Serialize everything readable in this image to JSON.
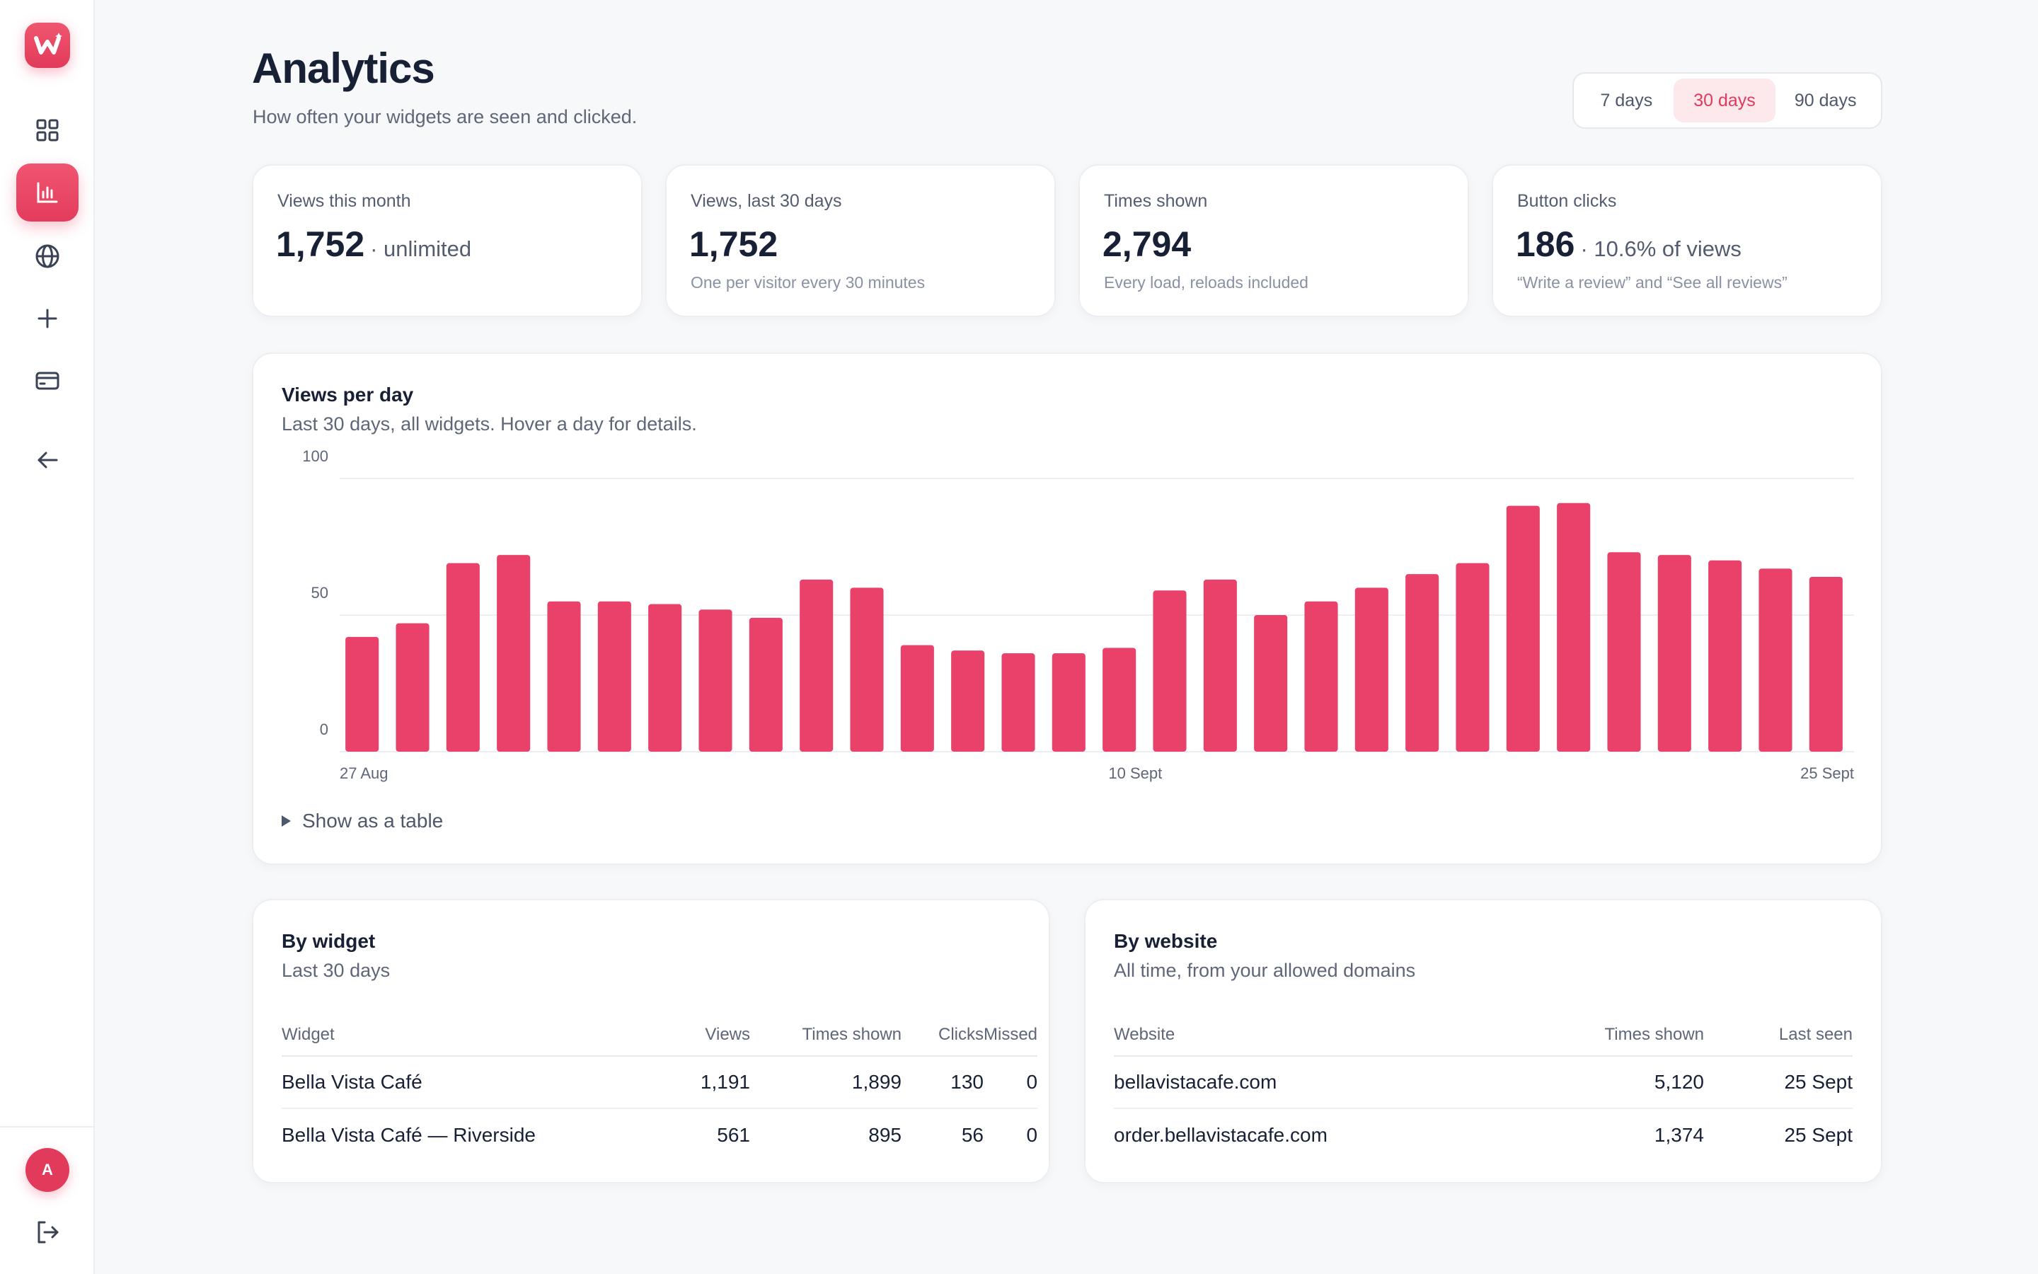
{
  "colors": {
    "accent": "#e9416a",
    "accent_soft": "#fde8ec",
    "text": "#182036",
    "muted": "#5e6678"
  },
  "sidebar": {
    "logo_icon": "widget-logo-icon",
    "items": [
      {
        "name": "dashboard",
        "icon": "grid-icon",
        "active": false
      },
      {
        "name": "analytics",
        "icon": "bar-chart-icon",
        "active": true
      },
      {
        "name": "websites",
        "icon": "globe-icon",
        "active": false
      },
      {
        "name": "create",
        "icon": "plus-icon",
        "active": false
      },
      {
        "name": "billing",
        "icon": "credit-card-icon",
        "active": false
      },
      {
        "name": "back",
        "icon": "arrow-left-icon",
        "active": false
      }
    ],
    "avatar_initial": "A",
    "logout_icon": "logout-icon"
  },
  "header": {
    "title": "Analytics",
    "subtitle": "How often your widgets are seen and clicked."
  },
  "range": {
    "options": [
      "7 days",
      "30 days",
      "90 days"
    ],
    "selected": "30 days"
  },
  "stats": [
    {
      "label": "Views this month",
      "value": "1,752",
      "suffix": "· unlimited",
      "note": ""
    },
    {
      "label": "Views, last 30 days",
      "value": "1,752",
      "suffix": "",
      "note": "One per visitor every 30 minutes"
    },
    {
      "label": "Times shown",
      "value": "2,794",
      "suffix": "",
      "note": "Every load, reloads included"
    },
    {
      "label": "Button clicks",
      "value": "186",
      "suffix": "· 10.6% of views",
      "note": "“Write a review” and “See all reviews”"
    }
  ],
  "views_chart": {
    "title": "Views per day",
    "subtitle": "Last 30 days, all widgets. Hover a day for details.",
    "toggle_label": "Show as a table"
  },
  "chart_data": {
    "type": "bar",
    "title": "Views per day",
    "subtitle": "Last 30 days, all widgets. Hover a day for details.",
    "xlabel": "",
    "ylabel": "",
    "ylim": [
      0,
      100
    ],
    "y_ticks": [
      "100",
      "50",
      "0"
    ],
    "y_tick_values": [
      100,
      50,
      0
    ],
    "x_tick_labels": [
      "27 Aug",
      "10 Sept",
      "25 Sept"
    ],
    "x_tick_indices": [
      0,
      14,
      29
    ],
    "grid": true,
    "color": "#e9416a",
    "values": [
      42,
      47,
      69,
      72,
      55,
      55,
      54,
      52,
      49,
      63,
      60,
      39,
      37,
      36,
      36,
      38,
      59,
      63,
      50,
      55,
      60,
      65,
      69,
      90,
      91,
      73,
      72,
      70,
      67,
      64
    ]
  },
  "by_widget": {
    "title": "By widget",
    "subtitle": "Last 30 days",
    "columns": [
      "Widget",
      "Views",
      "Times shown",
      "Clicks",
      "Missed"
    ],
    "rows": [
      [
        "Bella Vista Café",
        "1,191",
        "1,899",
        "130",
        "0"
      ],
      [
        "Bella Vista Café — Riverside",
        "561",
        "895",
        "56",
        "0"
      ]
    ]
  },
  "by_website": {
    "title": "By website",
    "subtitle": "All time, from your allowed domains",
    "columns": [
      "Website",
      "Times shown",
      "Last seen"
    ],
    "rows": [
      [
        "bellavistacafe.com",
        "5,120",
        "25 Sept"
      ],
      [
        "order.bellavistacafe.com",
        "1,374",
        "25 Sept"
      ]
    ]
  }
}
